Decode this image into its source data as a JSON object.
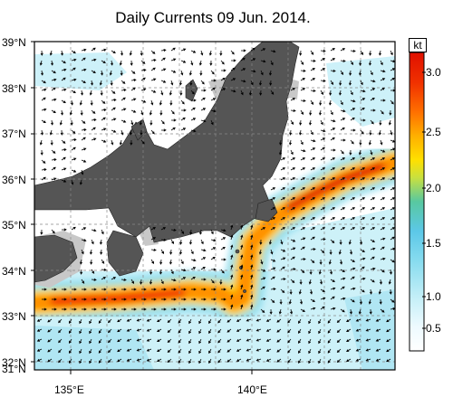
{
  "title": "Daily Currents 09 Jun. 2014.",
  "colorbar": {
    "unit": "kt",
    "ticks": [
      "0.5",
      "1.0",
      "1.5",
      "2.0",
      "2.5",
      "3.0"
    ],
    "range": [
      0,
      3.3
    ],
    "colors": [
      "#ffffff",
      "#c8f0f8",
      "#88dcef",
      "#5cc8e8",
      "#58c8a0",
      "#ffe000",
      "#ffb000",
      "#ff7000",
      "#f03000",
      "#e01000"
    ]
  },
  "axes": {
    "lat_labels": [
      "39°N",
      "38°N",
      "37°N",
      "36°N",
      "35°N",
      "34°N",
      "33°N",
      "32°N",
      "31°N"
    ],
    "lon_labels": [
      "135°E",
      "140°E"
    ],
    "lat_range": [
      31,
      39
    ],
    "lon_range": [
      133.5,
      143.5
    ]
  },
  "land_color": "#555555",
  "shelf_color": "#c8c8c8"
}
